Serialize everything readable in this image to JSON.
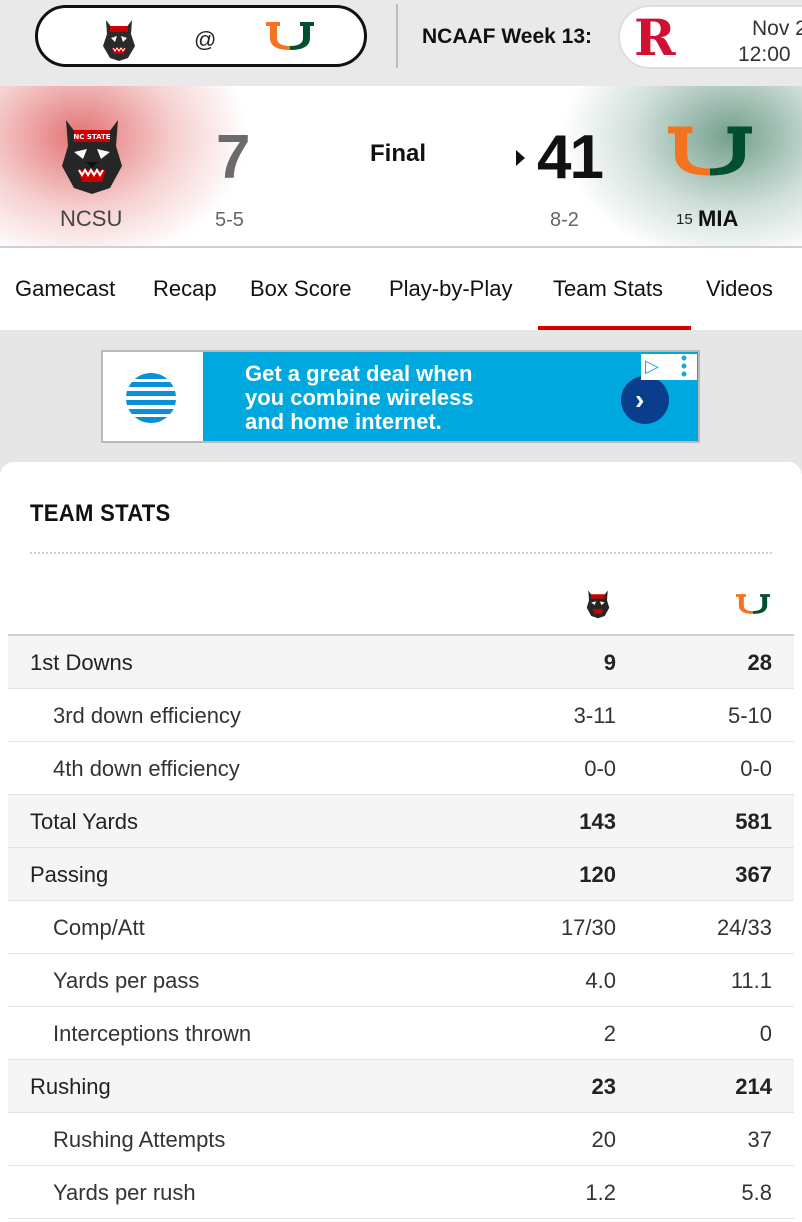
{
  "topbar": {
    "matchup_at": "@",
    "week_label": "NCAAF Week 13:",
    "next_game": {
      "date": "Nov 2",
      "time": "12:00"
    }
  },
  "game": {
    "status": "Final",
    "home": {
      "abbr": "NCSU",
      "score": "7",
      "record": "5-5",
      "color": "#cc0000"
    },
    "away": {
      "abbr": "MIA",
      "rank": "15",
      "score": "41",
      "record": "8-2",
      "color": "#f47321",
      "color2": "#005030"
    }
  },
  "tabs": [
    "Gamecast",
    "Recap",
    "Box Score",
    "Play-by-Play",
    "Team Stats",
    "Videos"
  ],
  "active_tab": "Team Stats",
  "ad": {
    "text_line1": "Get a great deal when",
    "text_line2": "you combine wireless",
    "text_line3": "and home internet."
  },
  "team_stats": {
    "title": "TEAM STATS",
    "rows": [
      {
        "label": "1st Downs",
        "home": "9",
        "away": "28",
        "type": "main"
      },
      {
        "label": "3rd down efficiency",
        "home": "3-11",
        "away": "5-10",
        "type": "sub"
      },
      {
        "label": "4th down efficiency",
        "home": "0-0",
        "away": "0-0",
        "type": "sub"
      },
      {
        "label": "Total Yards",
        "home": "143",
        "away": "581",
        "type": "main"
      },
      {
        "label": "Passing",
        "home": "120",
        "away": "367",
        "type": "main"
      },
      {
        "label": "Comp/Att",
        "home": "17/30",
        "away": "24/33",
        "type": "sub"
      },
      {
        "label": "Yards per pass",
        "home": "4.0",
        "away": "11.1",
        "type": "sub"
      },
      {
        "label": "Interceptions thrown",
        "home": "2",
        "away": "0",
        "type": "sub"
      },
      {
        "label": "Rushing",
        "home": "23",
        "away": "214",
        "type": "main"
      },
      {
        "label": "Rushing Attempts",
        "home": "20",
        "away": "37",
        "type": "sub"
      },
      {
        "label": "Yards per rush",
        "home": "1.2",
        "away": "5.8",
        "type": "sub"
      }
    ]
  }
}
